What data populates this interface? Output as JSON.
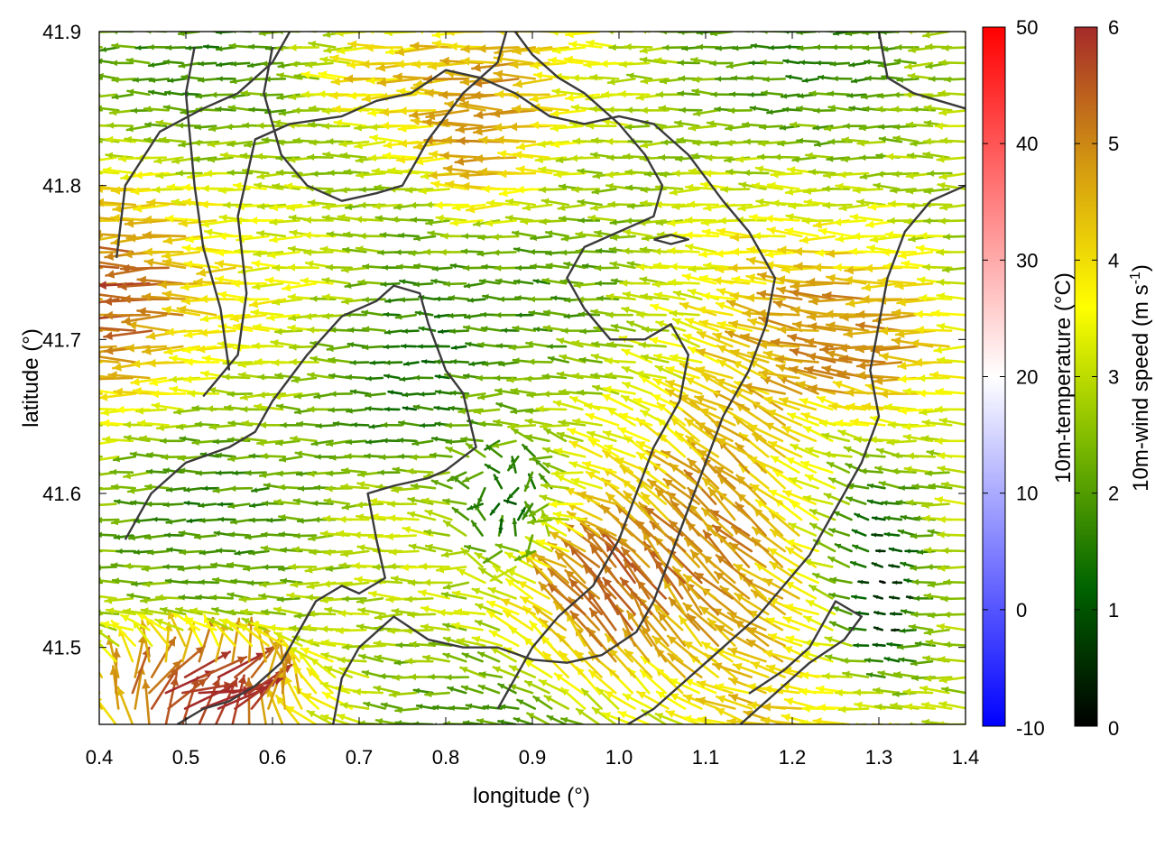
{
  "chart_data": {
    "type": "vector-field",
    "xlabel": "longitude (°)",
    "ylabel": "latitude (°)",
    "xlim": [
      0.4,
      1.4
    ],
    "ylim": [
      41.45,
      41.9
    ],
    "x_ticks": [
      "0.4",
      "0.5",
      "0.6",
      "0.7",
      "0.8",
      "0.9",
      "1.0",
      "1.1",
      "1.2",
      "1.3",
      "1.4"
    ],
    "y_ticks": [
      "41.5",
      "41.6",
      "41.7",
      "41.8",
      "41.9"
    ],
    "y_tick_values": [
      41.5,
      41.6,
      41.7,
      41.8,
      41.9
    ],
    "grid": false,
    "colorbars": [
      {
        "label": "10m-temperature (°C)",
        "range": [
          -10,
          50
        ],
        "ticks": [
          "50",
          "40",
          "30",
          "20",
          "10",
          "0",
          "-10"
        ],
        "tick_values": [
          50,
          40,
          30,
          20,
          10,
          0,
          -10
        ],
        "colors": [
          "#0000ff",
          "#ffffff",
          "#ff0000"
        ]
      },
      {
        "label_main": "10m-wind speed (m s",
        "label_sup": "-1",
        "label_end": ")",
        "range": [
          0,
          6
        ],
        "ticks": [
          "6",
          "5",
          "4",
          "3",
          "2",
          "1",
          "0"
        ],
        "tick_values": [
          6,
          5,
          4,
          3,
          2,
          1,
          0
        ],
        "colors": [
          "#000000",
          "#006400",
          "#7ab800",
          "#ffff00",
          "#d49a10",
          "#a52a2a"
        ]
      }
    ],
    "contours": [
      [
        [
          0.42,
          41.753
        ],
        [
          0.43,
          41.8
        ],
        [
          0.47,
          41.835
        ],
        [
          0.52,
          41.85
        ],
        [
          0.56,
          41.86
        ],
        [
          0.58,
          41.87
        ],
        [
          0.6,
          41.88
        ],
        [
          0.62,
          41.9
        ]
      ],
      [
        [
          0.43,
          41.57
        ],
        [
          0.46,
          41.6
        ],
        [
          0.5,
          41.62
        ],
        [
          0.55,
          41.63
        ],
        [
          0.58,
          41.64
        ],
        [
          0.6,
          41.66
        ],
        [
          0.64,
          41.69
        ],
        [
          0.68,
          41.715
        ],
        [
          0.72,
          41.725
        ],
        [
          0.74,
          41.735
        ],
        [
          0.77,
          41.73
        ],
        [
          0.78,
          41.71
        ],
        [
          0.8,
          41.68
        ],
        [
          0.82,
          41.665
        ],
        [
          0.835,
          41.63
        ],
        [
          0.8,
          41.615
        ],
        [
          0.78,
          41.61
        ],
        [
          0.74,
          41.605
        ],
        [
          0.71,
          41.6
        ],
        [
          0.72,
          41.57
        ],
        [
          0.73,
          41.545
        ],
        [
          0.7,
          41.535
        ],
        [
          0.68,
          41.54
        ],
        [
          0.65,
          41.53
        ],
        [
          0.63,
          41.51
        ],
        [
          0.61,
          41.49
        ],
        [
          0.58,
          41.475
        ],
        [
          0.55,
          41.465
        ],
        [
          0.52,
          41.46
        ],
        [
          0.49,
          41.45
        ]
      ],
      [
        [
          0.52,
          41.663
        ],
        [
          0.56,
          41.69
        ],
        [
          0.57,
          41.73
        ],
        [
          0.56,
          41.78
        ],
        [
          0.58,
          41.83
        ],
        [
          0.62,
          41.84
        ],
        [
          0.68,
          41.845
        ],
        [
          0.72,
          41.855
        ],
        [
          0.76,
          41.86
        ],
        [
          0.8,
          41.875
        ],
        [
          0.84,
          41.87
        ],
        [
          0.88,
          41.86
        ],
        [
          0.92,
          41.845
        ],
        [
          0.96,
          41.84
        ],
        [
          1.0,
          41.845
        ],
        [
          1.04,
          41.84
        ],
        [
          1.08,
          41.82
        ],
        [
          1.12,
          41.79
        ],
        [
          1.15,
          41.77
        ],
        [
          1.18,
          41.74
        ],
        [
          1.17,
          41.71
        ],
        [
          1.15,
          41.68
        ],
        [
          1.12,
          41.65
        ],
        [
          1.1,
          41.62
        ],
        [
          1.08,
          41.59
        ],
        [
          1.06,
          41.56
        ],
        [
          1.04,
          41.53
        ],
        [
          1.02,
          41.51
        ],
        [
          0.98,
          41.495
        ],
        [
          0.94,
          41.49
        ],
        [
          0.9,
          41.492
        ],
        [
          0.86,
          41.5
        ],
        [
          0.82,
          41.5
        ],
        [
          0.78,
          41.505
        ],
        [
          0.74,
          41.52
        ],
        [
          0.7,
          41.5
        ],
        [
          0.68,
          41.48
        ],
        [
          0.67,
          41.45
        ]
      ],
      [
        [
          0.87,
          41.9
        ],
        [
          0.86,
          41.88
        ],
        [
          0.82,
          41.86
        ],
        [
          0.78,
          41.83
        ],
        [
          0.75,
          41.8
        ],
        [
          0.72,
          41.795
        ],
        [
          0.68,
          41.79
        ],
        [
          0.64,
          41.8
        ],
        [
          0.61,
          41.82
        ],
        [
          0.59,
          41.86
        ],
        [
          0.6,
          41.89
        ]
      ],
      [
        [
          0.55,
          41.68
        ],
        [
          0.54,
          41.72
        ],
        [
          0.52,
          41.76
        ],
        [
          0.51,
          41.8
        ],
        [
          0.5,
          41.86
        ],
        [
          0.51,
          41.89
        ]
      ],
      [
        [
          0.88,
          41.9
        ],
        [
          0.9,
          41.885
        ],
        [
          0.93,
          41.87
        ],
        [
          0.96,
          41.86
        ],
        [
          1.0,
          41.84
        ],
        [
          1.03,
          41.82
        ],
        [
          1.05,
          41.8
        ],
        [
          1.04,
          41.78
        ],
        [
          1.0,
          41.77
        ],
        [
          0.96,
          41.76
        ],
        [
          0.94,
          41.74
        ],
        [
          0.96,
          41.72
        ],
        [
          0.99,
          41.7
        ],
        [
          1.03,
          41.7
        ],
        [
          1.06,
          41.71
        ],
        [
          1.08,
          41.69
        ],
        [
          1.07,
          41.66
        ],
        [
          1.04,
          41.63
        ],
        [
          1.02,
          41.6
        ],
        [
          1.0,
          41.57
        ],
        [
          0.97,
          41.54
        ],
        [
          0.93,
          41.52
        ],
        [
          0.9,
          41.5
        ],
        [
          0.88,
          41.48
        ],
        [
          0.86,
          41.46
        ]
      ],
      [
        [
          1.14,
          41.45
        ],
        [
          1.18,
          41.47
        ],
        [
          1.22,
          41.49
        ],
        [
          1.26,
          41.505
        ],
        [
          1.28,
          41.52
        ],
        [
          1.25,
          41.53
        ],
        [
          1.22,
          41.5
        ],
        [
          1.19,
          41.485
        ],
        [
          1.15,
          41.47
        ]
      ],
      [
        [
          1.04,
          41.765
        ],
        [
          1.06,
          41.762
        ],
        [
          1.08,
          41.765
        ],
        [
          1.06,
          41.768
        ],
        [
          1.04,
          41.765
        ]
      ],
      [
        [
          1.3,
          41.9
        ],
        [
          1.31,
          41.87
        ],
        [
          1.34,
          41.86
        ],
        [
          1.37,
          41.855
        ],
        [
          1.4,
          41.85
        ]
      ],
      [
        [
          1.4,
          41.8
        ],
        [
          1.36,
          41.79
        ],
        [
          1.33,
          41.77
        ],
        [
          1.31,
          41.74
        ],
        [
          1.3,
          41.71
        ],
        [
          1.29,
          41.68
        ],
        [
          1.3,
          41.65
        ],
        [
          1.28,
          41.62
        ],
        [
          1.26,
          41.6
        ],
        [
          1.24,
          41.58
        ],
        [
          1.22,
          41.56
        ],
        [
          1.19,
          41.54
        ],
        [
          1.16,
          41.52
        ],
        [
          1.12,
          41.5
        ],
        [
          1.08,
          41.48
        ],
        [
          1.04,
          41.46
        ],
        [
          1.01,
          41.45
        ]
      ]
    ]
  }
}
